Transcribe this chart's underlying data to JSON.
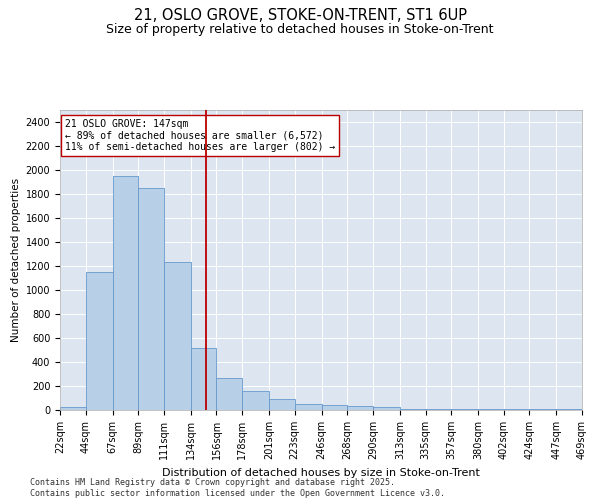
{
  "title1": "21, OSLO GROVE, STOKE-ON-TRENT, ST1 6UP",
  "title2": "Size of property relative to detached houses in Stoke-on-Trent",
  "xlabel": "Distribution of detached houses by size in Stoke-on-Trent",
  "ylabel": "Number of detached properties",
  "bar_color": "#b8cfe8",
  "bar_edge_color": "#6699cc",
  "property_size": 147,
  "property_label": "21 OSLO GROVE: 147sqm",
  "annotation_line1": "← 89% of detached houses are smaller (6,572)",
  "annotation_line2": "11% of semi-detached houses are larger (802) →",
  "vline_color": "#bb0000",
  "bin_edges": [
    22,
    44,
    67,
    89,
    111,
    134,
    156,
    178,
    201,
    223,
    246,
    268,
    290,
    313,
    335,
    357,
    380,
    402,
    424,
    447,
    469
  ],
  "bar_heights": [
    25,
    1150,
    1950,
    1850,
    1230,
    520,
    270,
    155,
    90,
    50,
    45,
    30,
    25,
    10,
    5,
    5,
    5,
    5,
    5,
    5
  ],
  "ylim": [
    0,
    2500
  ],
  "yticks": [
    0,
    200,
    400,
    600,
    800,
    1000,
    1200,
    1400,
    1600,
    1800,
    2000,
    2200,
    2400
  ],
  "background_color": "#dde6f0",
  "footer_line1": "Contains HM Land Registry data © Crown copyright and database right 2025.",
  "footer_line2": "Contains public sector information licensed under the Open Government Licence v3.0.",
  "title1_fontsize": 10.5,
  "title2_fontsize": 9,
  "xlabel_fontsize": 8,
  "ylabel_fontsize": 7.5,
  "tick_fontsize": 7,
  "footer_fontsize": 6,
  "annot_fontsize": 7
}
